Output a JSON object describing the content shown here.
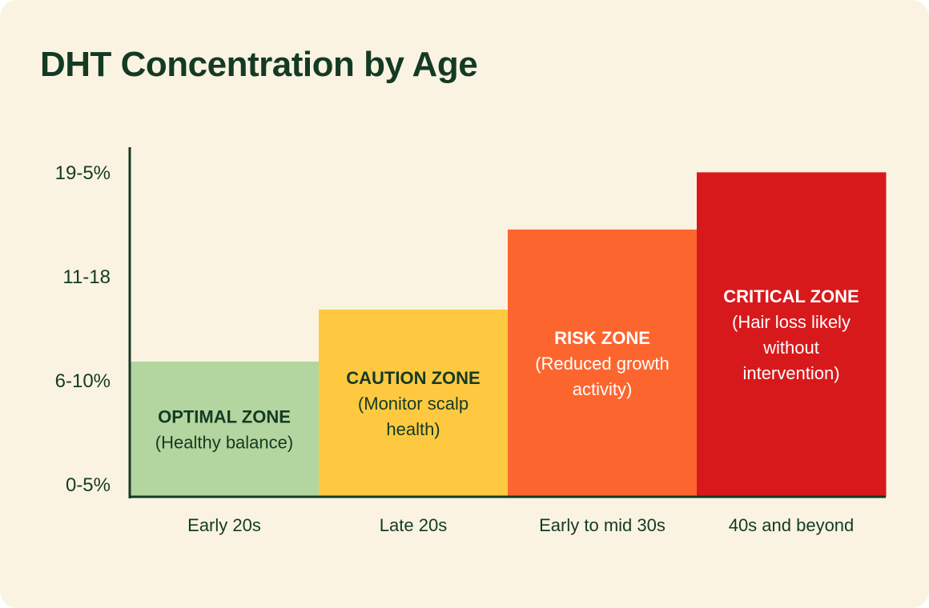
{
  "chart_data": {
    "type": "bar",
    "title": "DHT Concentration by Age",
    "xlabel": "",
    "ylabel": "",
    "y_ticks": [
      "0-5%",
      "6-10%",
      "11-18",
      "19-5%"
    ],
    "ylim": [
      0,
      4
    ],
    "categories": [
      "Early 20s",
      "Late 20s",
      "Early to mid 30s",
      "40s and beyond"
    ],
    "values": [
      1.3,
      1.8,
      2.57,
      3.12
    ],
    "zones": [
      {
        "label": "OPTIMAL ZONE",
        "desc": [
          "(Healthy balance)"
        ],
        "color": "#b3d6a0",
        "text_color": "#143a24"
      },
      {
        "label": "CAUTION ZONE",
        "desc": [
          "(Monitor scalp",
          "health)"
        ],
        "color": "#fec940",
        "text_color": "#143a24"
      },
      {
        "label": "RISK ZONE",
        "desc": [
          "(Reduced growth",
          "activity)"
        ],
        "color": "#fd652f",
        "text_color": "#ffffff"
      },
      {
        "label": "CRITICAL ZONE",
        "desc": [
          "(Hair loss likely",
          "without",
          "intervention)"
        ],
        "color": "#d8191c",
        "text_color": "#ffffff"
      }
    ],
    "grid": false,
    "legend": "none",
    "axis_color": "#143a24"
  }
}
